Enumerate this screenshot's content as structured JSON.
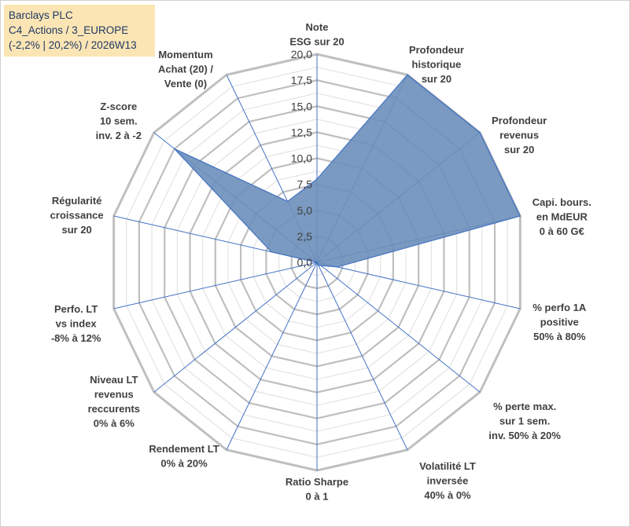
{
  "title_box": {
    "line1": "Barclays PLC",
    "line2": "C4_Actions / 3_EUROPE",
    "line3": "(-2,2% | 20,2%) / 2026W13"
  },
  "colors": {
    "fill": "#6b8fba",
    "stroke": "#4472c4",
    "grid": "#bfbfbf",
    "title_bg": "#fbe5b4",
    "title_text": "#1f3864"
  },
  "chart_data": {
    "type": "radar",
    "title": "Barclays PLC",
    "rmin": 0,
    "rmax": 20,
    "ticks": [
      "0,0",
      "2,5",
      "5,0",
      "7,5",
      "10,0",
      "12,5",
      "15,0",
      "17,5",
      "20,0"
    ],
    "tick_values": [
      0,
      2.5,
      5,
      7.5,
      10,
      12.5,
      15,
      17.5,
      20
    ],
    "axes": [
      {
        "label": [
          "Note",
          "ESG sur 20"
        ],
        "value": 8.0
      },
      {
        "label": [
          "Profondeur",
          "historique",
          "sur 20"
        ],
        "value": 20.0
      },
      {
        "label": [
          "Profondeur",
          "revenus",
          "sur 20"
        ],
        "value": 20.0
      },
      {
        "label": [
          "Capi. bours.",
          "en MdEUR",
          "0 à 60 G€"
        ],
        "value": 20.0
      },
      {
        "label": [
          "% perfo 1A",
          "positive",
          "50% à 80%"
        ],
        "value": 2.0
      },
      {
        "label": [
          "% perte max.",
          "sur 1 sem.",
          "inv. 50% à 20%"
        ],
        "value": 0.5
      },
      {
        "label": [
          "Volatilité LT",
          "inversée",
          "40% à 0%"
        ],
        "value": 0.3
      },
      {
        "label": [
          "Ratio Sharpe",
          "0 à 1"
        ],
        "value": 0.0
      },
      {
        "label": [
          "Rendement LT",
          "0% à 20%"
        ],
        "value": 0.0
      },
      {
        "label": [
          "Niveau LT",
          "revenus",
          "reccurents",
          "0% à 6%"
        ],
        "value": 0.0
      },
      {
        "label": [
          "Perfo. LT",
          "vs index",
          "-8% à 12%"
        ],
        "value": 0.0
      },
      {
        "label": [
          "Régularité",
          "croissance",
          "sur 20"
        ],
        "value": 4.5
      },
      {
        "label": [
          "Z-score",
          "10 sem.",
          "inv. 2 à -2"
        ],
        "value": 17.5
      },
      {
        "label": [
          "Momentum",
          "Achat (20) /",
          "Vente (0)"
        ],
        "value": 6.5
      }
    ]
  }
}
